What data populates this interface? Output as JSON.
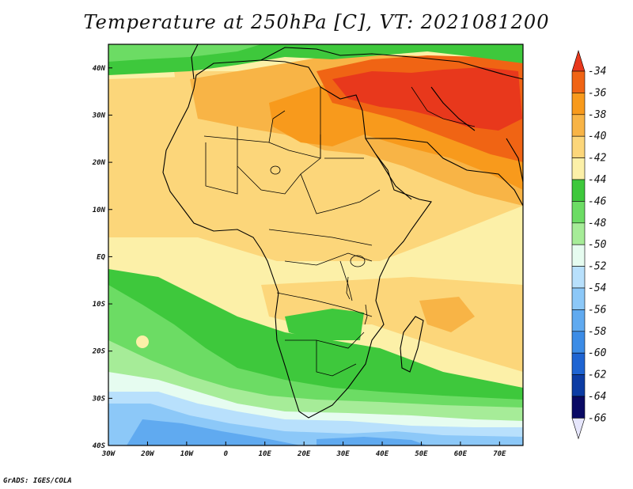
{
  "title": "Temperature at 250hPa [C], VT: 2021081200",
  "footer": "GrADS: IGES/COLA",
  "map": {
    "lon_range": [
      -30,
      76
    ],
    "lat_range": [
      -40,
      45
    ],
    "lon_ticks": [
      {
        "value": -30,
        "label": "30W"
      },
      {
        "value": -20,
        "label": "20W"
      },
      {
        "value": -10,
        "label": "10W"
      },
      {
        "value": 0,
        "label": "0"
      },
      {
        "value": 10,
        "label": "10E"
      },
      {
        "value": 20,
        "label": "20E"
      },
      {
        "value": 30,
        "label": "30E"
      },
      {
        "value": 40,
        "label": "40E"
      },
      {
        "value": 50,
        "label": "50E"
      },
      {
        "value": 60,
        "label": "60E"
      },
      {
        "value": 70,
        "label": "70E"
      }
    ],
    "lat_ticks": [
      {
        "value": 40,
        "label": "40N"
      },
      {
        "value": 30,
        "label": "30N"
      },
      {
        "value": 20,
        "label": "20N"
      },
      {
        "value": 10,
        "label": "10N"
      },
      {
        "value": 0,
        "label": "EQ"
      },
      {
        "value": -10,
        "label": "10S"
      },
      {
        "value": -20,
        "label": "20S"
      },
      {
        "value": -30,
        "label": "30S"
      },
      {
        "value": -40,
        "label": "40S"
      }
    ]
  },
  "colorbar": {
    "levels": [
      {
        "label": "-34",
        "color": "#e8381c"
      },
      {
        "label": "-36",
        "color": "#f06414"
      },
      {
        "label": "-38",
        "color": "#f89a1c"
      },
      {
        "label": "-40",
        "color": "#f8b446"
      },
      {
        "label": "-42",
        "color": "#fcd67a"
      },
      {
        "label": "-44",
        "color": "#fcf0a8"
      },
      {
        "label": "-46",
        "color": "#3ec83c"
      },
      {
        "label": "-48",
        "color": "#6cdc64"
      },
      {
        "label": "-50",
        "color": "#a6ec98"
      },
      {
        "label": "-52",
        "color": "#e6fcf0"
      },
      {
        "label": "-54",
        "color": "#b8e0fc"
      },
      {
        "label": "-56",
        "color": "#8cc8f8"
      },
      {
        "label": "-58",
        "color": "#60aaf0"
      },
      {
        "label": "-60",
        "color": "#3c8ce6"
      },
      {
        "label": "-62",
        "color": "#1e64d2"
      },
      {
        "label": "-64",
        "color": "#0c3ca4"
      },
      {
        "label": "-66",
        "color": "#0a0a64"
      }
    ],
    "over_color": "#e8381c",
    "under_color": "#e6e6fc"
  }
}
